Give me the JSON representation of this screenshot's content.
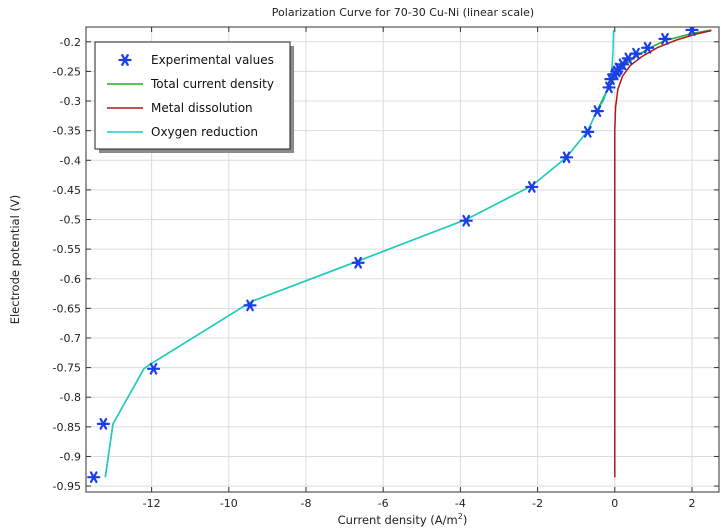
{
  "chart_data": {
    "type": "line",
    "title": "Polarization Curve for 70-30 Cu-Ni (linear scale)",
    "xlabel": "Current density (A/m",
    "xlabel_sup": "2",
    "xlabel_close": ")",
    "ylabel": "Electrode potential (V)",
    "xlim": [
      -13.7,
      2.7
    ],
    "ylim": [
      -0.96,
      -0.175
    ],
    "x_ticks": [
      -12,
      -10,
      -8,
      -6,
      -4,
      -2,
      0,
      2
    ],
    "x_tick_labels": [
      "-12",
      "-10",
      "-8",
      "-6",
      "-4",
      "-2",
      "0",
      "2"
    ],
    "y_ticks": [
      -0.95,
      -0.9,
      -0.85,
      -0.8,
      -0.75,
      -0.7,
      -0.65,
      -0.6,
      -0.55,
      -0.5,
      -0.45,
      -0.4,
      -0.35,
      -0.3,
      -0.25,
      -0.2
    ],
    "y_tick_labels": [
      "-0.95",
      "-0.9",
      "-0.85",
      "-0.8",
      "-0.75",
      "-0.7",
      "-0.65",
      "-0.6",
      "-0.55",
      "-0.5",
      "-0.45",
      "-0.4",
      "-0.35",
      "-0.3",
      "-0.25",
      "-0.2"
    ],
    "grid": true,
    "legend_position": "top-left",
    "series": [
      {
        "name": "Experimental values",
        "kind": "scatter",
        "marker": "asterisk",
        "color": "#1a3ee8",
        "x": [
          -13.5,
          -13.25,
          -11.95,
          -9.45,
          -6.65,
          -3.85,
          -2.15,
          -1.25,
          -0.7,
          -0.45,
          -0.15,
          -0.1,
          0.0,
          0.05,
          0.1,
          0.2,
          0.35,
          0.55,
          0.85,
          1.3,
          2.0
        ],
        "y": [
          -0.935,
          -0.845,
          -0.752,
          -0.645,
          -0.573,
          -0.502,
          -0.445,
          -0.395,
          -0.352,
          -0.317,
          -0.277,
          -0.263,
          -0.255,
          -0.25,
          -0.245,
          -0.238,
          -0.228,
          -0.22,
          -0.21,
          -0.195,
          -0.18
        ]
      },
      {
        "name": "Total current density",
        "kind": "line",
        "color": "#22b022",
        "x": [
          -13.2,
          -13.0,
          -12.2,
          -12.05,
          -9.5,
          -9.4,
          -6.65,
          -3.85,
          -2.15,
          -1.25,
          -0.7,
          -0.45,
          -0.2,
          -0.05,
          0.05,
          0.15,
          0.3,
          0.55,
          0.85,
          1.3,
          2.0,
          2.5
        ],
        "y": [
          -0.935,
          -0.845,
          -0.752,
          -0.745,
          -0.642,
          -0.638,
          -0.57,
          -0.5,
          -0.443,
          -0.395,
          -0.35,
          -0.315,
          -0.282,
          -0.265,
          -0.255,
          -0.247,
          -0.237,
          -0.225,
          -0.212,
          -0.198,
          -0.186,
          -0.18
        ]
      },
      {
        "name": "Metal dissolution",
        "kind": "line",
        "color": "#b01818",
        "x": [
          0.0,
          0.0,
          0.0,
          0.0,
          0.0,
          0.02,
          0.08,
          0.2,
          0.4,
          0.7,
          1.1,
          1.6,
          2.1,
          2.5
        ],
        "y": [
          -0.935,
          -0.8,
          -0.6,
          -0.45,
          -0.35,
          -0.31,
          -0.28,
          -0.258,
          -0.24,
          -0.225,
          -0.21,
          -0.197,
          -0.187,
          -0.181
        ]
      },
      {
        "name": "Oxygen reduction",
        "kind": "line",
        "color": "#1ccccc",
        "x": [
          -13.2,
          -13.0,
          -12.2,
          -12.05,
          -9.5,
          -9.4,
          -6.65,
          -3.85,
          -2.15,
          -1.25,
          -0.7,
          -0.45,
          -0.3,
          -0.2,
          -0.12,
          -0.08,
          -0.05,
          -0.03
        ],
        "y": [
          -0.935,
          -0.845,
          -0.752,
          -0.745,
          -0.642,
          -0.638,
          -0.57,
          -0.5,
          -0.443,
          -0.395,
          -0.35,
          -0.315,
          -0.3,
          -0.282,
          -0.265,
          -0.25,
          -0.22,
          -0.18
        ]
      }
    ]
  }
}
